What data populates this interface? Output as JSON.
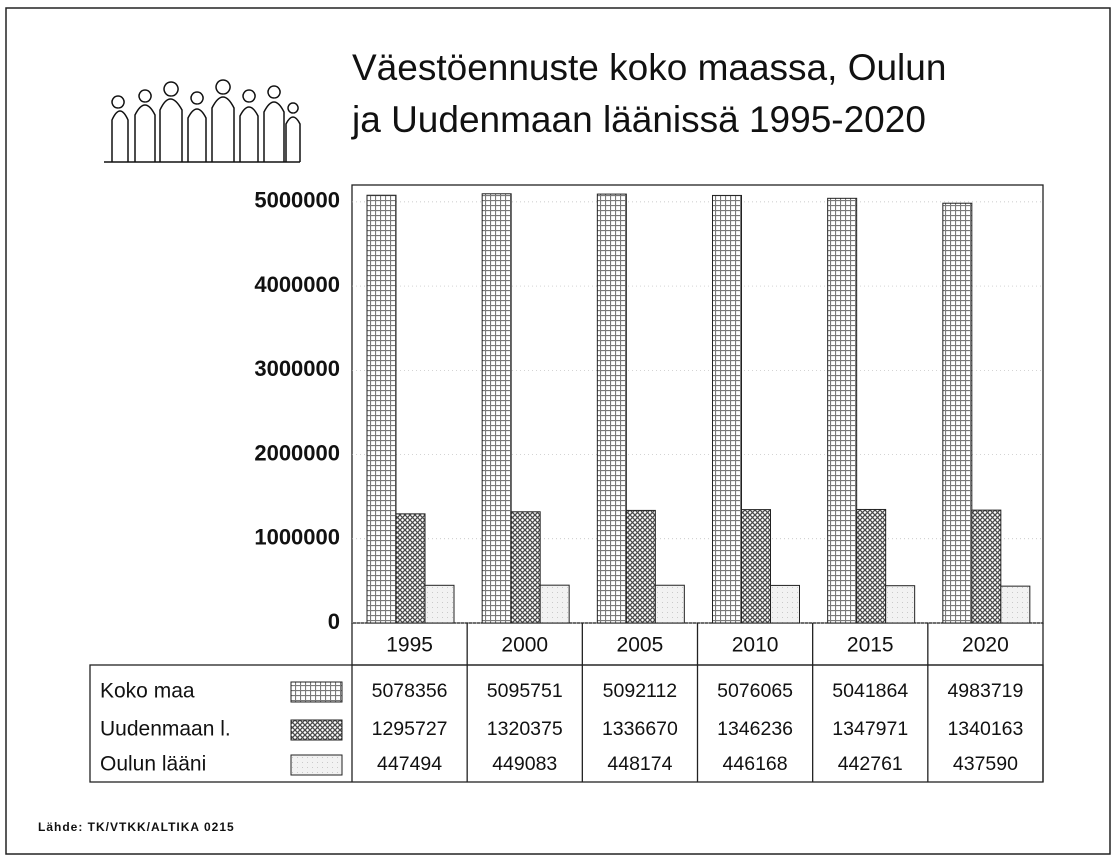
{
  "chart_data": {
    "type": "bar",
    "title": [
      "Väestöennuste koko maassa, Oulun",
      "ja Uudenmaan läänissä 1995-2020"
    ],
    "categories": [
      "1995",
      "2000",
      "2005",
      "2010",
      "2015",
      "2020"
    ],
    "series": [
      {
        "name": "Koko maa",
        "color": "#7a7a7a",
        "values": [
          5078356,
          5095751,
          5092112,
          5076065,
          5041864,
          4983719
        ]
      },
      {
        "name": "Uudenmaan l.",
        "color": "#4a4a4a",
        "values": [
          1295727,
          1320375,
          1336670,
          1346236,
          1347971,
          1340163
        ]
      },
      {
        "name": "Oulun lääni",
        "color": "#f2f2f2",
        "values": [
          447494,
          449083,
          448174,
          446168,
          442761,
          437590
        ]
      }
    ],
    "ylim": [
      0,
      5200000
    ],
    "yticks": [
      0,
      1000000,
      2000000,
      3000000,
      4000000,
      5000000
    ],
    "grid": true,
    "source": "Lähde: TK/VTKK/ALTIKA 0215"
  }
}
